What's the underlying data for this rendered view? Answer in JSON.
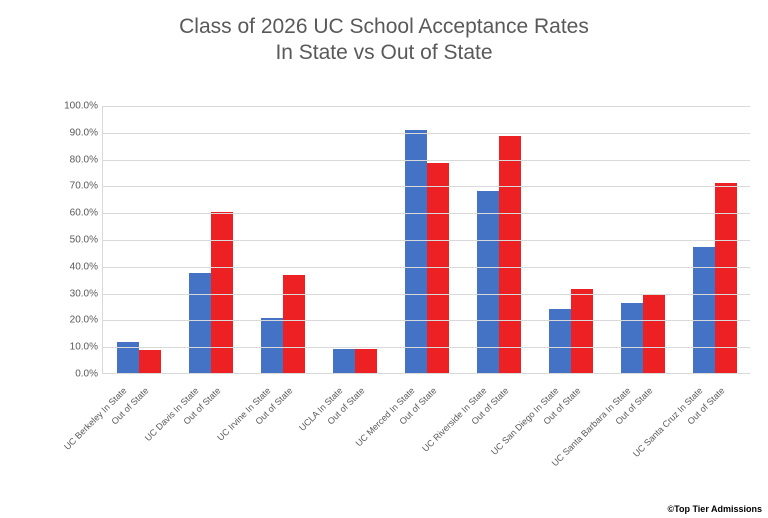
{
  "chart": {
    "type": "bar",
    "title_line1": "Class of 2026 UC School Acceptance Rates",
    "title_line2": "In State vs Out of State",
    "title_fontsize": 21,
    "title_color": "#595959",
    "background_color": "#ffffff",
    "grid_color": "#d9d9d9",
    "axis_color": "#d9d9d9",
    "label_color": "#595959",
    "y_axis": {
      "min": 0,
      "max": 100,
      "tick_step": 10,
      "tick_format_suffix": ".0%",
      "tick_fontsize": 10
    },
    "x_label_fontsize": 9,
    "x_label_rotation_deg": -45,
    "series_colors": {
      "in_state": "#4472c4",
      "out_of_state": "#ed2024"
    },
    "bar_pair_gap_ratio": 0.0,
    "categories": [
      {
        "label_in": "UC Berkeley In State",
        "label_out": "Out of State",
        "in_state": 11.5,
        "out_of_state": 8.5
      },
      {
        "label_in": "UC Davis In State",
        "label_out": "Out of State",
        "in_state": 37.5,
        "out_of_state": 60.0
      },
      {
        "label_in": "UC Irvine In State",
        "label_out": "Out of State",
        "in_state": 20.5,
        "out_of_state": 36.5
      },
      {
        "label_in": "UCLA In State",
        "label_out": "Out of State",
        "in_state": 9.0,
        "out_of_state": 9.0
      },
      {
        "label_in": "UC Merced In State",
        "label_out": "Out of State",
        "in_state": 90.5,
        "out_of_state": 78.5
      },
      {
        "label_in": "UC Riverside In State",
        "label_out": "Out of State",
        "in_state": 68.0,
        "out_of_state": 88.5
      },
      {
        "label_in": "UC San Diego In State",
        "label_out": "Out of State",
        "in_state": 24.0,
        "out_of_state": 31.5
      },
      {
        "label_in": "UC Santa Barbara In State",
        "label_out": "Out of State",
        "in_state": 26.0,
        "out_of_state": 29.0
      },
      {
        "label_in": "UC Santa Cruz In State",
        "label_out": "Out of State",
        "in_state": 47.0,
        "out_of_state": 71.0
      }
    ],
    "credit": "©Top Tier Admissions"
  }
}
